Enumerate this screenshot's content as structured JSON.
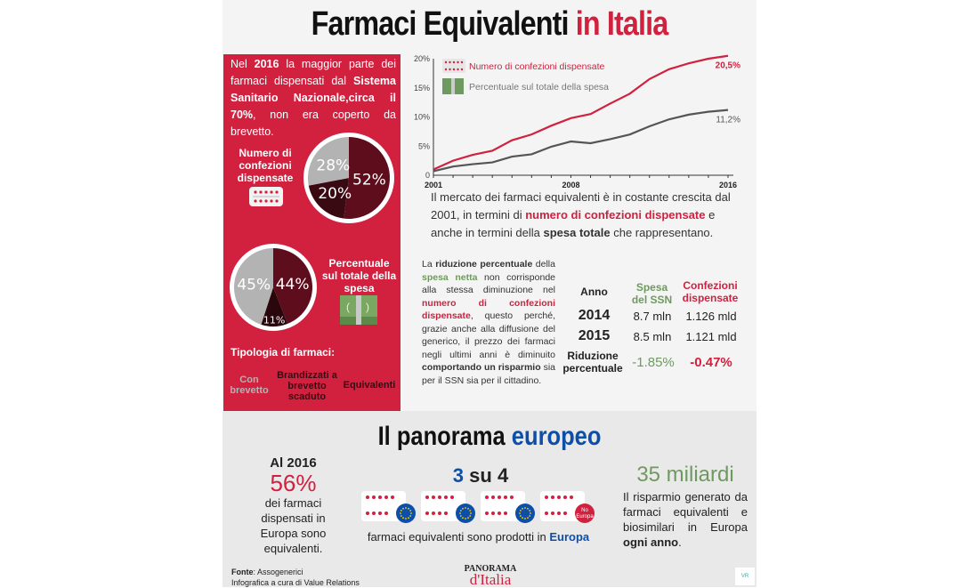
{
  "title": {
    "main": "Farmaci Equivalenti",
    "highlight": "in Italia"
  },
  "left_panel": {
    "intro": {
      "p1": "Nel ",
      "b1": "2016",
      "p2": " la maggior parte dei farmaci dispensati dal ",
      "b2": "Sistema Sanitario Nazionale,circa il 70%",
      "p3": ", non era coperto da brevetto."
    },
    "pie1_label": "Numero di confezioni dispensate",
    "pie2_label": "Percentuale sul totale della spesa",
    "types_title": "Tipologia di farmaci:",
    "types": [
      "Con brevetto",
      "Brandizzati a brevetto scaduto",
      "Equivalenti"
    ],
    "type_colors": [
      "#b3b3b3",
      "#3a0a12",
      "#5e0d1c"
    ]
  },
  "chart_data": [
    {
      "type": "line",
      "x": [
        2001,
        2002,
        2003,
        2004,
        2005,
        2006,
        2007,
        2008,
        2009,
        2010,
        2011,
        2012,
        2013,
        2014,
        2015,
        2016
      ],
      "series": [
        {
          "name": "Numero di confezioni dispensate",
          "color": "#d0213f",
          "values": [
            1,
            2.5,
            3.5,
            4.2,
            6,
            7,
            8.5,
            9.8,
            10.5,
            12.3,
            14,
            16.5,
            18.2,
            19.2,
            20,
            20.5
          ],
          "end_label": "20,5%"
        },
        {
          "name": "Percentuale sul totale della spesa",
          "color": "#555555",
          "values": [
            0.7,
            1.5,
            1.9,
            2.2,
            3.2,
            3.6,
            4.9,
            5.8,
            5.5,
            6.2,
            7,
            8.4,
            9.6,
            10.4,
            10.9,
            11.2
          ],
          "end_label": "11,2%"
        }
      ],
      "yticks": [
        "0",
        "5%",
        "10%",
        "15%",
        "20%"
      ],
      "ytick_values": [
        0,
        5,
        10,
        15,
        20
      ],
      "xticks": [
        "2001",
        "2008",
        "2016"
      ],
      "ylim": [
        0,
        20
      ],
      "legend": "top-left"
    },
    {
      "type": "pie",
      "title": "Numero di confezioni dispensate",
      "slices": [
        {
          "label": "52%",
          "value": 52,
          "color": "#5e0d1c"
        },
        {
          "label": "20%",
          "value": 20,
          "color": "#3a0a12"
        },
        {
          "label": "28%",
          "value": 28,
          "color": "#b3b3b3"
        }
      ]
    },
    {
      "type": "pie",
      "title": "Percentuale sul totale della spesa",
      "slices": [
        {
          "label": "44%",
          "value": 44,
          "color": "#5e0d1c"
        },
        {
          "label": "11%",
          "value": 11,
          "color": "#2a070d"
        },
        {
          "label": "45%",
          "value": 45,
          "color": "#b3b3b3"
        }
      ]
    }
  ],
  "market_text": {
    "p1": "Il mercato dei farmaci equivalenti è in costante crescita dal 2001, in termini di ",
    "r1": "numero di confezioni dispensate",
    "p2": " e anche  in termini della ",
    "b1": "spesa totale",
    "p3": " che rappresentano."
  },
  "reduction_text": {
    "p1": "La ",
    "b1": "riduzione percentuale",
    "p2": " della ",
    "g1": "spesa netta",
    "p3": " non corrisponde alla stessa diminuzione nel ",
    "r1": "numero di confezioni dispensate",
    "p4": ", questo perché, grazie anche alla diffusione del generico, il prezzo dei farmaci negli ultimi anni è diminuito ",
    "b2": "comportando un risparmio",
    "p5": " sia per il SSN sia per il cittadino."
  },
  "table": {
    "headers": [
      "Anno",
      "Spesa del SSN",
      "Confezioni dispensate"
    ],
    "rows": [
      [
        "2014",
        "8.7 mln",
        "1.126 mld"
      ],
      [
        "2015",
        "8.5 mln",
        "1.121 mld"
      ]
    ],
    "reduction": [
      "Riduzione percentuale",
      "-1.85%",
      "-0.47%"
    ]
  },
  "europe": {
    "title": "Il panorama",
    "title_hl": "europeo",
    "left": {
      "year": "Al 2016",
      "pct": "56%",
      "text": "dei farmaci dispensati in Europa sono equivalenti."
    },
    "center": {
      "a": "3",
      "b": "su 4",
      "caption": "farmaci equivalenti sono prodotti in ",
      "caption_hl": "Europa",
      "no_eu": "No Europa"
    },
    "right": {
      "amount": "35 miliardi",
      "text": "Il risparmio generato da farmaci equivalenti e biosimilari in Europa ",
      "bold": "ogni anno",
      "end": "."
    }
  },
  "footer": {
    "fonte_label": "Fonte",
    "fonte": ": Assogenerici",
    "credit": "Infografica a cura di Value Relations",
    "logo_top": "PANORAMA",
    "logo_bottom": "d'Italia",
    "corner": "VR"
  }
}
